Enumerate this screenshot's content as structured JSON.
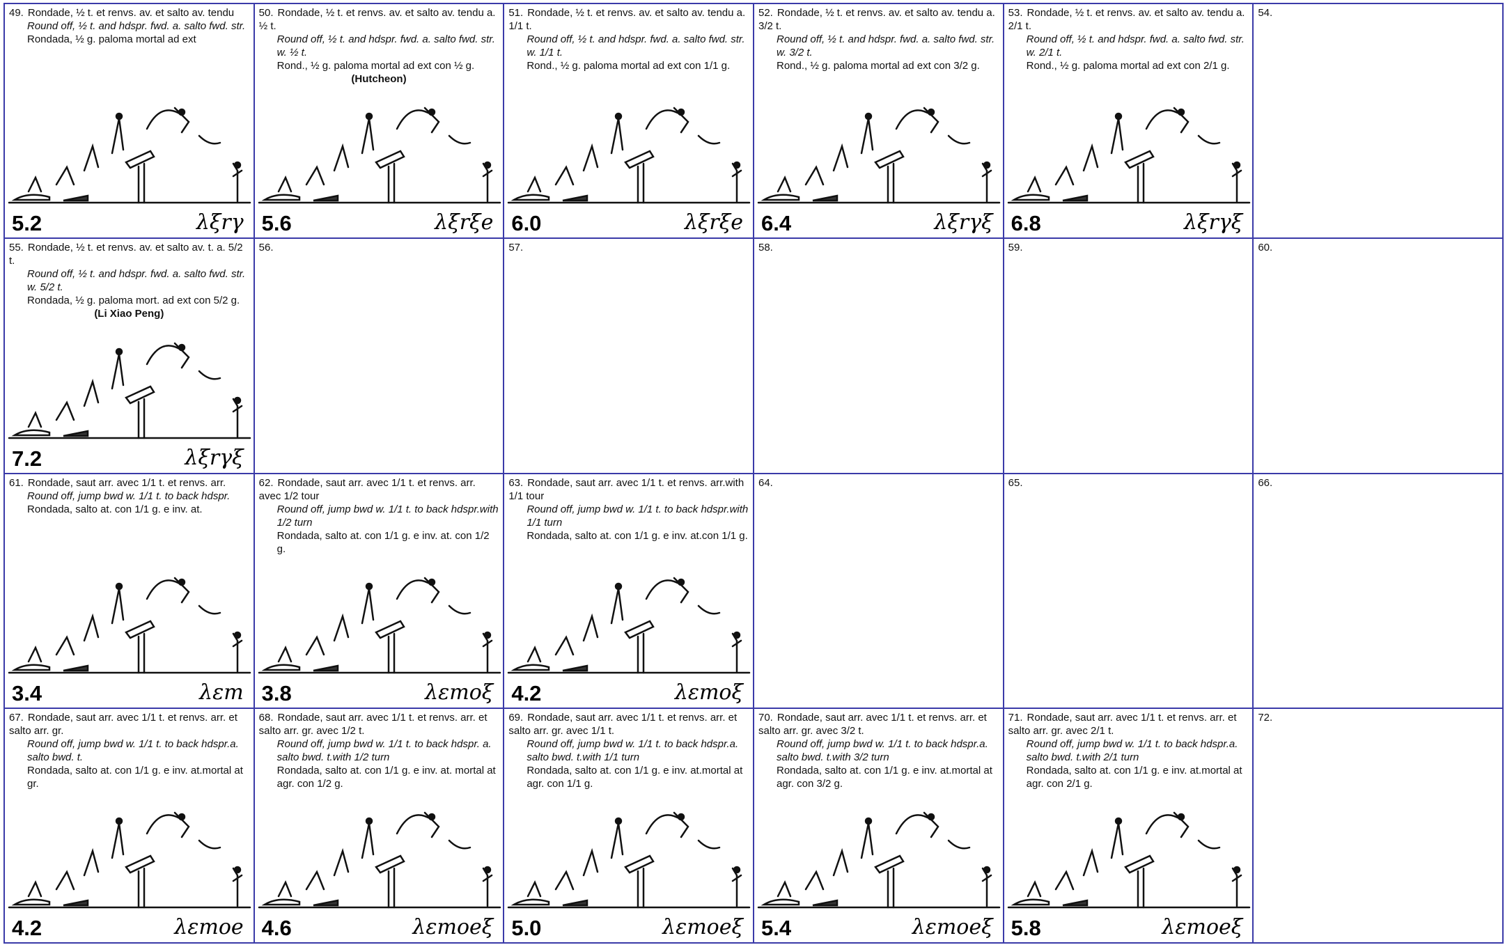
{
  "cells": [
    {
      "number": "49.",
      "fr": "Rondade, ½ t. et renvs. av. et salto av. tendu",
      "en": "Round off, ½ t. and hdspr. fwd. a. salto fwd. str.",
      "es": "Rondada, ½ g. paloma mortal ad ext",
      "value": "5.2",
      "symbol": "λξrγ"
    },
    {
      "number": "50.",
      "fr": "Rondade, ½ t. et renvs. av. et salto av. tendu a. ½ t.",
      "en": "Round off, ½ t. and hdspr. fwd. a. salto fwd. str. w. ½ t.",
      "es": "Rond., ½ g. paloma mortal ad ext con ½ g.",
      "name": "(Hutcheon)",
      "value": "5.6",
      "symbol": "λξrξe"
    },
    {
      "number": "51.",
      "fr": "Rondade, ½ t. et renvs. av. et salto av. tendu a. 1/1 t.",
      "en": "Round off, ½ t. and hdspr. fwd. a. salto fwd. str. w. 1/1 t.",
      "es": "Rond., ½ g. paloma mortal ad ext con 1/1 g.",
      "value": "6.0",
      "symbol": "λξrξe"
    },
    {
      "number": "52.",
      "fr": "Rondade, ½ t. et renvs. av. et salto av. tendu a. 3/2 t.",
      "en": "Round off, ½ t. and hdspr. fwd. a. salto fwd. str. w. 3/2 t.",
      "es": "Rond., ½ g. paloma mortal ad ext con 3/2 g.",
      "value": "6.4",
      "symbol": "λξrγξ"
    },
    {
      "number": "53.",
      "fr": "Rondade, ½ t. et renvs. av. et salto av. tendu a. 2/1 t.",
      "en": "Round off, ½ t. and hdspr. fwd. a. salto fwd. str. w. 2/1 t.",
      "es": "Rond., ½ g. paloma mortal ad ext con 2/1 g.",
      "value": "6.8",
      "symbol": "λξrγξ"
    },
    {
      "number": "54."
    },
    {
      "number": "55.",
      "fr": "Rondade, ½ t. et renvs. av. et salto av. t. a. 5/2 t.",
      "en": "Round off, ½ t. and hdspr. fwd. a. salto fwd. str. w. 5/2 t.",
      "es": "Rondada, ½ g. paloma mort. ad ext con 5/2 g.",
      "name": "(Li Xiao Peng)",
      "value": "7.2",
      "symbol": "λξrγξ"
    },
    {
      "number": "56."
    },
    {
      "number": "57."
    },
    {
      "number": "58."
    },
    {
      "number": "59."
    },
    {
      "number": "60."
    },
    {
      "number": "61.",
      "fr": "Rondade, saut arr. avec 1/1 t. et renvs. arr.",
      "en": "Round off, jump bwd w. 1/1 t. to back hdspr.",
      "es": "Rondada, salto at. con 1/1 g. e inv. at.",
      "value": "3.4",
      "symbol": "λεm"
    },
    {
      "number": "62.",
      "fr": "Rondade, saut arr. avec 1/1 t. et renvs. arr. avec 1/2 tour",
      "en": "Round off, jump bwd w. 1/1 t. to back hdspr.with 1/2 turn",
      "es": "Rondada, salto at. con 1/1 g. e inv. at. con 1/2 g.",
      "value": "3.8",
      "symbol": "λεmoξ"
    },
    {
      "number": "63.",
      "fr": "Rondade, saut arr. avec 1/1 t. et renvs. arr.with 1/1 tour",
      "en": "Round off, jump bwd w. 1/1 t. to back hdspr.with 1/1 turn",
      "es": "Rondada, salto at. con 1/1 g. e inv. at.con 1/1 g.",
      "value": "4.2",
      "symbol": "λεmoξ"
    },
    {
      "number": "64."
    },
    {
      "number": "65."
    },
    {
      "number": "66."
    },
    {
      "number": "67.",
      "fr": "Rondade, saut arr. avec 1/1 t. et renvs. arr. et salto arr. gr.",
      "en": "Round off, jump bwd w. 1/1 t. to back hdspr.a. salto bwd. t.",
      "es": "Rondada, salto at. con 1/1 g. e inv. at.mortal at gr.",
      "value": "4.2",
      "symbol": "λεmoe"
    },
    {
      "number": "68.",
      "fr": "Rondade, saut arr. avec 1/1 t. et renvs. arr. et salto arr. gr. avec 1/2 t.",
      "en": "Round off, jump bwd w. 1/1 t. to back hdspr. a. salto bwd. t.with 1/2 turn",
      "es": "Rondada, salto at. con 1/1 g. e inv. at. mortal at agr. con 1/2 g.",
      "value": "4.6",
      "symbol": "λεmoeξ"
    },
    {
      "number": "69.",
      "fr": "Rondade, saut arr. avec 1/1 t. et renvs. arr. et salto arr. gr. avec 1/1 t.",
      "en": "Round off, jump bwd w. 1/1 t. to back hdspr.a. salto bwd. t.with 1/1 turn",
      "es": "Rondada, salto at. con 1/1 g. e inv. at.mortal at agr. con 1/1 g.",
      "value": "5.0",
      "symbol": "λεmoeξ"
    },
    {
      "number": "70.",
      "fr": "Rondade, saut arr. avec 1/1 t. et renvs. arr. et salto arr. gr. avec 3/2 t.",
      "en": "Round off, jump bwd w. 1/1 t. to back hdspr.a. salto bwd. t.with 3/2 turn",
      "es": "Rondada, salto at. con 1/1 g. e inv. at.mortal at agr. con 3/2 g.",
      "value": "5.4",
      "symbol": "λεmoeξ"
    },
    {
      "number": "71.",
      "fr": "Rondade, saut arr. avec 1/1 t. et renvs. arr. et salto arr. gr. avec 2/1 t.",
      "en": "Round off, jump bwd w. 1/1 t. to back hdspr.a. salto bwd. t.with 2/1 turn",
      "es": "Rondada, salto at. con 1/1 g. e inv. at.mortal at agr. con 2/1 g.",
      "value": "5.8",
      "symbol": "λεmoeξ"
    },
    {
      "number": "72."
    }
  ]
}
